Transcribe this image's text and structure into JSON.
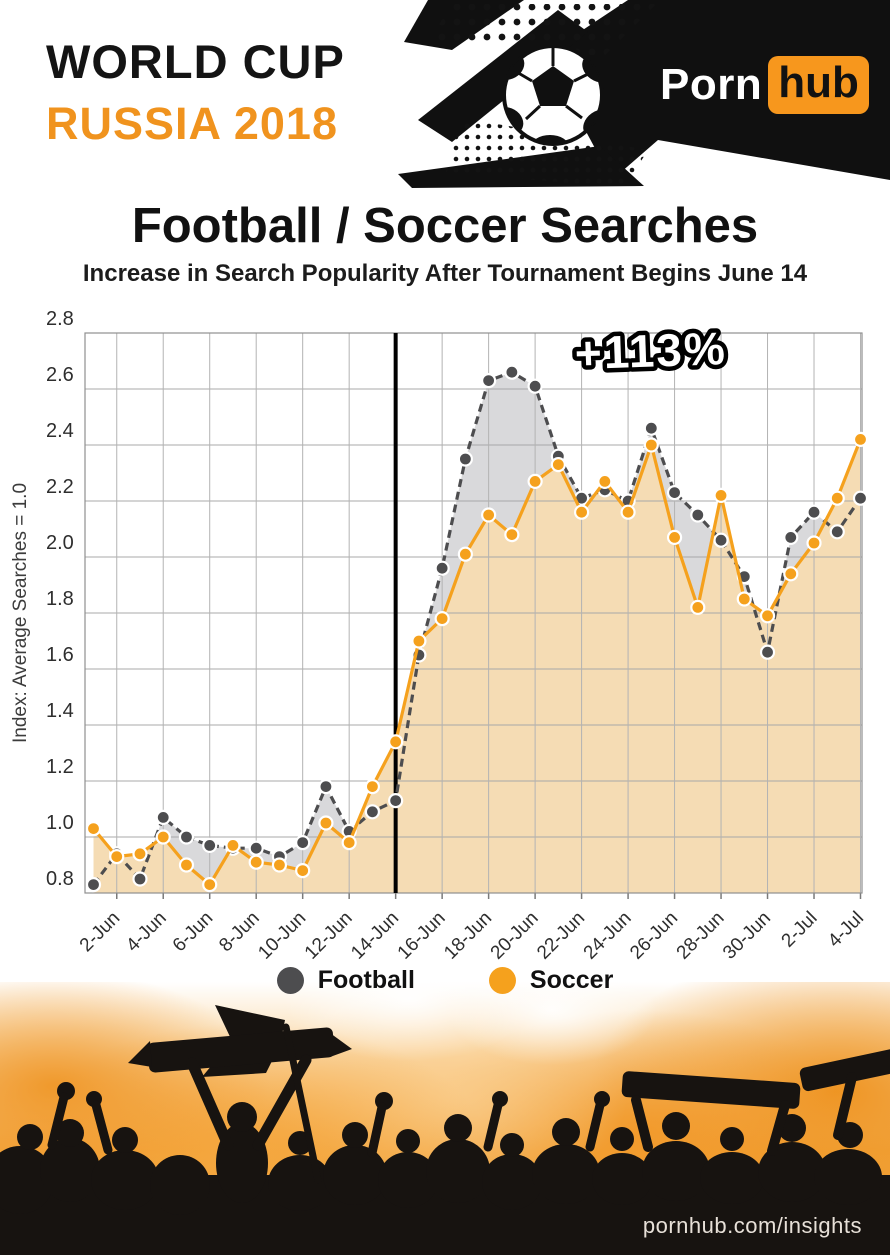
{
  "header": {
    "world_cup": "WORLD CUP",
    "russia": "RUSSIA 2018",
    "brand_porn": "Porn",
    "brand_hub": "hub"
  },
  "title": "Football / Soccer Searches",
  "subtitle": "Increase in Search Popularity After Tournament Begins June 14",
  "legend": [
    {
      "label": "Football",
      "color": "#4d4d4f"
    },
    {
      "label": "Soccer",
      "color": "#f5a11d"
    }
  ],
  "footer": {
    "url": "pornhub.com/insights"
  },
  "colors": {
    "accent_orange": "#f0931e",
    "brand_orange": "#f7971d",
    "football_gray": "#4d4d4f",
    "soccer_orange": "#f5a11d"
  },
  "chart_data": {
    "type": "line",
    "title": "Football / Soccer Searches",
    "ylabel": "Index: Average Searches = 1.0",
    "ylim": [
      0.8,
      2.8
    ],
    "ytick_step": 0.2,
    "grid": true,
    "legend_position": "bottom",
    "event_line_date": "14-Jun",
    "annotation": {
      "text": "+113%",
      "x_index": 24,
      "y_value": 2.68
    },
    "x": [
      "1-Jun",
      "2-Jun",
      "3-Jun",
      "4-Jun",
      "5-Jun",
      "6-Jun",
      "7-Jun",
      "8-Jun",
      "9-Jun",
      "10-Jun",
      "11-Jun",
      "12-Jun",
      "13-Jun",
      "14-Jun",
      "15-Jun",
      "16-Jun",
      "17-Jun",
      "18-Jun",
      "19-Jun",
      "20-Jun",
      "21-Jun",
      "22-Jun",
      "23-Jun",
      "24-Jun",
      "25-Jun",
      "26-Jun",
      "27-Jun",
      "28-Jun",
      "29-Jun",
      "30-Jun",
      "1-Jul",
      "2-Jul",
      "3-Jul",
      "4-Jul"
    ],
    "xtick_labels": [
      "2-Jun",
      "4-Jun",
      "6-Jun",
      "8-Jun",
      "10-Jun",
      "12-Jun",
      "14-Jun",
      "16-Jun",
      "18-Jun",
      "20-Jun",
      "22-Jun",
      "24-Jun",
      "26-Jun",
      "28-Jun",
      "30-Jun",
      "2-Jul",
      "4-Jul"
    ],
    "series": [
      {
        "name": "Football",
        "color": "#4d4d4f",
        "fill": "#d9d9db",
        "dash": true,
        "values": [
          0.83,
          0.94,
          0.85,
          1.07,
          1.0,
          0.97,
          0.96,
          0.96,
          0.93,
          0.98,
          1.18,
          1.02,
          1.09,
          1.13,
          1.65,
          1.96,
          2.35,
          2.63,
          2.66,
          2.61,
          2.36,
          2.21,
          2.24,
          2.2,
          2.46,
          2.23,
          2.15,
          2.06,
          1.93,
          1.66,
          2.07,
          2.16,
          2.09,
          2.21
        ]
      },
      {
        "name": "Soccer",
        "color": "#f5a11d",
        "fill": "#f5dcb4",
        "dash": false,
        "values": [
          1.03,
          0.93,
          0.94,
          1.0,
          0.9,
          0.83,
          0.97,
          0.91,
          0.9,
          0.88,
          1.05,
          0.98,
          1.18,
          1.34,
          1.7,
          1.78,
          2.01,
          2.15,
          2.08,
          2.27,
          2.33,
          2.16,
          2.27,
          2.16,
          2.4,
          2.07,
          1.82,
          2.22,
          1.85,
          1.79,
          1.94,
          2.05,
          2.21,
          2.42
        ]
      }
    ]
  }
}
